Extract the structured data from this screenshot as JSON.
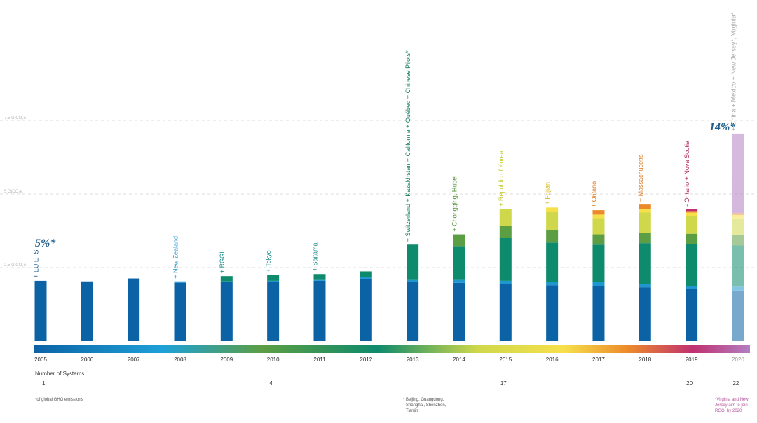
{
  "chart_data": {
    "type": "bar",
    "stacked": true,
    "y_ticks": [
      "7.5 GtCO₂e",
      "5 GtCO₂e",
      "2.5 GtCO₂e"
    ],
    "categories": [
      "2005",
      "2006",
      "2007",
      "2008",
      "2009",
      "2010",
      "2011",
      "2012",
      "2013",
      "2014",
      "2015",
      "2016",
      "2017",
      "2018",
      "2019",
      "2020"
    ],
    "ylim": [
      0,
      7.5
    ],
    "grid": true,
    "series": [
      {
        "color": "#0b63a6",
        "values": [
          2.05,
          2.03,
          2.13,
          1.98,
          2.0,
          2.02,
          2.05,
          2.12,
          2.0,
          1.98,
          1.95,
          1.9,
          1.88,
          1.83,
          1.78,
          1.72
        ]
      },
      {
        "color": "#1e96d0",
        "values": [
          0,
          0,
          0,
          0.05,
          0.03,
          0.03,
          0.03,
          0.05,
          0.08,
          0.1,
          0.1,
          0.1,
          0.12,
          0.1,
          0.1,
          0.13
        ]
      },
      {
        "color": "#0e8a6c",
        "values": [
          0,
          0,
          0,
          0,
          0.18,
          0.2,
          0.2,
          0.2,
          1.2,
          1.15,
          1.45,
          1.35,
          1.28,
          1.4,
          1.42,
          1.4
        ]
      },
      {
        "color": "#5c9e43",
        "values": [
          0,
          0,
          0,
          0,
          0,
          0,
          0,
          0,
          0,
          0.4,
          0.42,
          0.42,
          0.35,
          0.36,
          0.35,
          0.37
        ]
      },
      {
        "color": "#cfd84a",
        "values": [
          0,
          0,
          0,
          0,
          0,
          0,
          0,
          0,
          0,
          0,
          0.56,
          0.62,
          0.55,
          0.68,
          0.6,
          0.55
        ]
      },
      {
        "color": "#f6e04a",
        "values": [
          0,
          0,
          0,
          0,
          0,
          0,
          0,
          0,
          0,
          0,
          0,
          0.15,
          0.12,
          0.12,
          0.12,
          0.12
        ]
      },
      {
        "color": "#ec8a2b",
        "values": [
          0,
          0,
          0,
          0,
          0,
          0,
          0,
          0,
          0,
          0,
          0,
          0,
          0.15,
          0.15,
          0.05,
          0.06
        ]
      },
      {
        "color": "#c03070",
        "values": [
          0,
          0,
          0,
          0,
          0,
          0,
          0,
          0,
          0,
          0,
          0,
          0,
          0,
          0,
          0.06,
          0
        ]
      },
      {
        "color": "#b27fc2",
        "values": [
          0,
          0,
          0,
          0,
          0,
          0,
          0,
          0,
          0,
          0,
          0,
          0,
          0,
          0,
          0,
          2.7
        ]
      }
    ],
    "faded_categories": [
      "2020"
    ],
    "annotations": [
      {
        "index": 0,
        "text": "+ EU ETS",
        "color": "#0b4f86"
      },
      {
        "index": 3,
        "text": "+ New Zealand",
        "color": "#1e96d0"
      },
      {
        "index": 4,
        "text": "+ RGGI",
        "color": "#1e8c8c"
      },
      {
        "index": 5,
        "text": "+ Tokyo",
        "color": "#1e8c8c"
      },
      {
        "index": 6,
        "text": "+ Saitama",
        "color": "#1e8c8c"
      },
      {
        "index": 8,
        "text": "+ Switzerland + Kazakhstan + California + Québec + Chinese Pilots*",
        "color": "#0e7a5f"
      },
      {
        "index": 9,
        "text": "+ Chongqing, Hubei",
        "color": "#4f8f36"
      },
      {
        "index": 10,
        "text": "+ Republic of Korea",
        "color": "#c5cb3a"
      },
      {
        "index": 11,
        "text": "+ Fujian",
        "color": "#d4b81c"
      },
      {
        "index": 12,
        "text": "+ Ontario",
        "color": "#e07b20"
      },
      {
        "index": 13,
        "text": "+ Massachusetts",
        "color": "#e07b20"
      },
      {
        "index": 14,
        "text": "- Ontario + Nova Scotia",
        "color": "#b0285f"
      },
      {
        "index": 15,
        "text": "+ China + Mexico + New Jersey*, Virginia*",
        "color": "#aaaaaa"
      }
    ],
    "share_labels": [
      {
        "index": 0,
        "text": "5%*",
        "color": "#1f5d8c"
      },
      {
        "index": 15,
        "text": "14%*",
        "color": "#1f5d8c"
      }
    ],
    "systems_label": "Number of Systems",
    "systems": [
      {
        "index": 0,
        "value": "1"
      },
      {
        "index": 5,
        "value": "4"
      },
      {
        "index": 10,
        "value": "17"
      },
      {
        "index": 14,
        "value": "20"
      },
      {
        "index": 15,
        "value": "22"
      }
    ],
    "footnotes": {
      "left": "*of global GHG emissions",
      "middle": [
        "* Beijing, Guangdong,",
        "Shanghai, Shenzhen,",
        "Tianjin"
      ],
      "right": [
        "*Virginia and New",
        "Jersey aim to join",
        "RGGI by 2020"
      ]
    },
    "gradient_colors": [
      "#0b63a6",
      "#1ea0d8",
      "#5c9e43",
      "#0e8a6c",
      "#cfd84a",
      "#f6e04a",
      "#ec8a2b",
      "#c03070",
      "#b27fc2"
    ]
  }
}
